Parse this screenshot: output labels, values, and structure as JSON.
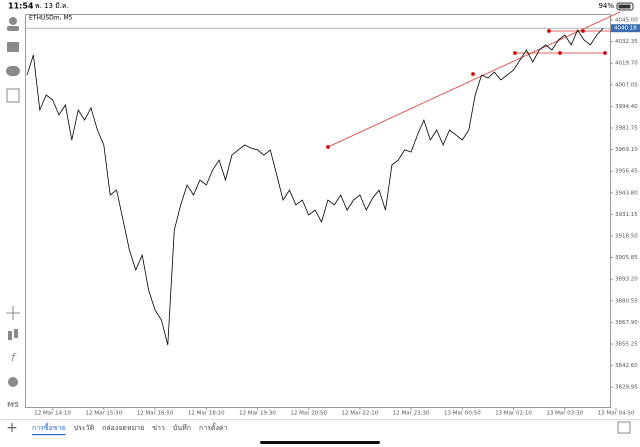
{
  "status_bar": {
    "time": "11:54",
    "date": "พ. 13 มี.ค.",
    "battery": "94%"
  },
  "sidebar": {
    "timeframe": "M5"
  },
  "chart_data": {
    "type": "line",
    "title": "ETHUSDm, M5",
    "color": "#000000",
    "values": [
      4012.8,
      4024.5,
      3992.3,
      4001.1,
      3998.2,
      3989.4,
      3995.2,
      3974.7,
      3992.3,
      3986.4,
      3993.5,
      3980.6,
      3971.8,
      3942.5,
      3945.4,
      3927.9,
      3910.3,
      3898.6,
      3907.4,
      3886.9,
      3875.2,
      3869.3,
      3854.7,
      3922.0,
      3936.7,
      3948.4,
      3942.5,
      3951.3,
      3948.4,
      3957.2,
      3963.0,
      3951.3,
      3965.9,
      3968.9,
      3971.8,
      3970.0,
      3968.9,
      3965.9,
      3968.9,
      3954.2,
      3939.6,
      3945.4,
      3936.7,
      3939.6,
      3930.8,
      3933.7,
      3926.7,
      3939.6,
      3936.7,
      3942.5,
      3933.7,
      3939.6,
      3942.5,
      3933.7,
      3940.8,
      3945.4,
      3933.7,
      3960.1,
      3963.0,
      3968.9,
      3967.7,
      3977.7,
      3986.4,
      3974.7,
      3980.6,
      3971.8,
      3980.6,
      3977.7,
      3974.7,
      3980.6,
      4001.1,
      4012.8,
      4011.0,
      4014.5,
      4009.9,
      4012.8,
      4015.7,
      4021.6,
      4027.4,
      4020.4,
      4027.4,
      4030.4,
      4027.4,
      4033.3,
      4036.2,
      4030.4,
      4039.1,
      4033.3,
      4030.4,
      4036.2,
      4040.2
    ],
    "xlim": [
      0,
      92
    ],
    "xticks": [
      {
        "value": 4,
        "label": "12 Mar 14:10"
      },
      {
        "value": 12,
        "label": "12 Mar 15:30"
      },
      {
        "value": 20,
        "label": "12 Mar 16:50"
      },
      {
        "value": 28,
        "label": "12 Mar 18:10"
      },
      {
        "value": 36,
        "label": "12 Mar 19:30"
      },
      {
        "value": 44,
        "label": "12 Mar 20:50"
      },
      {
        "value": 52,
        "label": "12 Mar 22:10"
      },
      {
        "value": 60,
        "label": "12 Mar 23:30"
      },
      {
        "value": 68,
        "label": "13 Mar 00:50"
      },
      {
        "value": 76,
        "label": "13 Mar 02:10"
      },
      {
        "value": 84,
        "label": "13 Mar 03:30"
      },
      {
        "value": 92,
        "label": "13 Mar 04:50"
      }
    ],
    "ylim": [
      3817.8,
      4048.5
    ],
    "yticks": [
      {
        "value": 4045,
        "label": "4045.00"
      },
      4032.35,
      {
        "value": 4019.7,
        "label": "4019.70"
      },
      4007.05,
      {
        "value": 3994.4,
        "label": "3994.40"
      },
      3981.75,
      {
        "value": 3969.1,
        "label": "3969.10"
      },
      3956.45,
      {
        "value": 3943.8,
        "label": "3943.80"
      },
      3931.15,
      {
        "value": 3918.5,
        "label": "3918.50"
      },
      3905.85,
      {
        "value": 3893.2,
        "label": "3893.20"
      },
      3880.55,
      {
        "value": 3867.9,
        "label": "3867.90"
      },
      3855.25,
      {
        "value": 3842.6,
        "label": "3842.60"
      },
      3829.95
    ],
    "grid": false,
    "current_price": 4040.18
  },
  "tabs": [
    "การซื้อขาย",
    "ประวัติ",
    "กล่องจดหมาย",
    "ข่าว",
    "บันทึก",
    "การตั้งค่า"
  ]
}
